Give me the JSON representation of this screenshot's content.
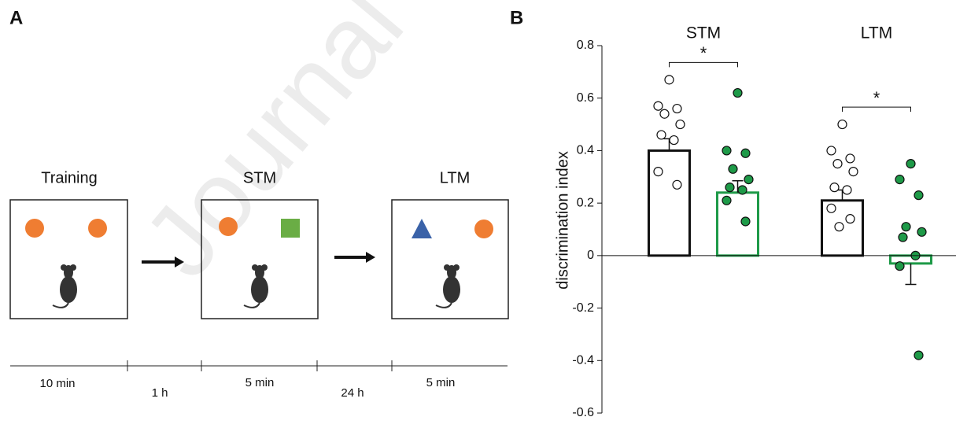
{
  "panel_a": {
    "label": "A",
    "watermark": "Journal Pre-proof",
    "stages": [
      "Training",
      "STM",
      "LTM"
    ],
    "timeline": [
      "10 min",
      "1 h",
      "5 min",
      "24 h",
      "5 min"
    ]
  },
  "chart_data": {
    "type": "bar",
    "label": "B",
    "ylabel": "discrimination index",
    "categories": [
      "STM",
      "LTM"
    ],
    "series": [
      {
        "color": "#111111",
        "fill": "#ffffff",
        "values": [
          0.4,
          0.21
        ],
        "errors": [
          0.045,
          0.04
        ],
        "points": [
          [
            0.67,
            0.57,
            0.56,
            0.54,
            0.5,
            0.46,
            0.44,
            0.32,
            0.27
          ],
          [
            0.5,
            0.4,
            0.37,
            0.35,
            0.32,
            0.26,
            0.25,
            0.18,
            0.14,
            0.11
          ]
        ]
      },
      {
        "color": "#1e9a48",
        "fill": "#ffffff",
        "values": [
          0.24,
          -0.03
        ],
        "errors": [
          0.045,
          0.08
        ],
        "points": [
          [
            0.62,
            0.4,
            0.39,
            0.33,
            0.29,
            0.26,
            0.25,
            0.21,
            0.13
          ],
          [
            0.35,
            0.29,
            0.23,
            0.11,
            0.09,
            0.07,
            0.0,
            -0.04,
            -0.38
          ]
        ]
      }
    ],
    "annotations": [
      "*",
      "*"
    ],
    "ylim": [
      -0.6,
      0.8
    ],
    "yticks": [
      0.8,
      0.6,
      0.4,
      0.2,
      0,
      -0.2,
      -0.4,
      -0.6
    ]
  }
}
